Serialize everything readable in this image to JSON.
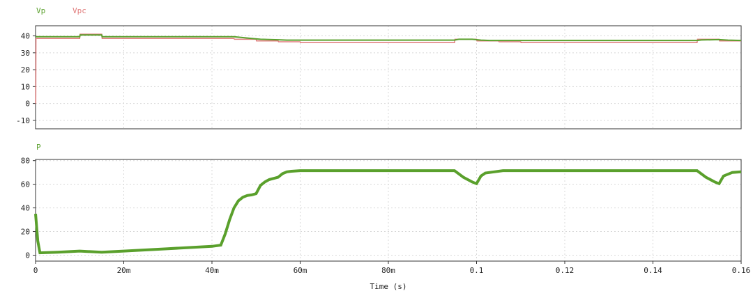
{
  "colors": {
    "vp": "#5aa02c",
    "vpc": "#e07b7b",
    "p": "#5aa02c",
    "grid": "#d8d8d8",
    "axis": "#333333"
  },
  "chart_data": [
    {
      "type": "line",
      "legend": [
        "Vp",
        "Vpc"
      ],
      "ylim": [
        -15,
        46
      ],
      "yticks": [
        40,
        30,
        20,
        10,
        0,
        -10
      ],
      "ytick_labels": [
        "40",
        "30",
        "20",
        "10",
        "0",
        "-10"
      ],
      "xlim": [
        0,
        0.16
      ],
      "series": [
        {
          "name": "Vp",
          "x": [
            0,
            0.0003,
            0.01,
            0.0101,
            0.015,
            0.0151,
            0.045,
            0.047,
            0.049,
            0.051,
            0.055,
            0.057,
            0.095,
            0.096,
            0.099,
            0.101,
            0.103,
            0.105,
            0.15,
            0.151,
            0.155,
            0.157,
            0.16
          ],
          "y": [
            39.5,
            39.5,
            39.5,
            40.5,
            40.5,
            39.5,
            39.5,
            39.0,
            38.5,
            38.0,
            37.7,
            37.5,
            37.5,
            38.0,
            38.0,
            37.5,
            37.3,
            37.3,
            37.3,
            37.6,
            37.8,
            37.5,
            37.3
          ]
        },
        {
          "name": "Vpc",
          "x": [
            0,
            5e-05,
            0.0001,
            0.01,
            0.0101,
            0.015,
            0.0151,
            0.045,
            0.0451,
            0.05,
            0.0501,
            0.055,
            0.0551,
            0.06,
            0.0601,
            0.095,
            0.0951,
            0.1,
            0.1001,
            0.105,
            0.1051,
            0.11,
            0.1101,
            0.15,
            0.1501,
            0.155,
            0.1551,
            0.16
          ],
          "y": [
            0,
            0,
            38.5,
            38.5,
            41.0,
            41.0,
            38.5,
            38.5,
            38.0,
            38.0,
            37.0,
            37.0,
            36.5,
            36.5,
            36.0,
            36.0,
            38.0,
            38.0,
            37.0,
            37.0,
            36.5,
            36.5,
            36.0,
            36.0,
            38.0,
            38.0,
            37.0,
            37.0
          ]
        }
      ]
    },
    {
      "type": "line",
      "legend": [
        "P"
      ],
      "ylim": [
        -5,
        81
      ],
      "yticks": [
        80,
        60,
        40,
        20,
        0
      ],
      "ytick_labels": [
        "80",
        "60",
        "40",
        "20",
        "0"
      ],
      "xlim": [
        0,
        0.16
      ],
      "xticks": [
        0,
        0.02,
        0.04,
        0.06,
        0.08,
        0.1,
        0.12,
        0.14,
        0.16
      ],
      "xtick_labels": [
        "0",
        "20m",
        "40m",
        "60m",
        "80m",
        "0.1",
        "0.12",
        "0.14",
        "0.16"
      ],
      "xlabel": "Time (s)",
      "series": [
        {
          "name": "P",
          "x": [
            0,
            0.0005,
            0.001,
            0.005,
            0.01,
            0.015,
            0.02,
            0.03,
            0.04,
            0.042,
            0.043,
            0.044,
            0.045,
            0.046,
            0.047,
            0.048,
            0.049,
            0.05,
            0.051,
            0.052,
            0.053,
            0.055,
            0.056,
            0.057,
            0.058,
            0.06,
            0.065,
            0.095,
            0.097,
            0.099,
            0.1,
            0.101,
            0.102,
            0.104,
            0.106,
            0.107,
            0.11,
            0.15,
            0.152,
            0.154,
            0.155,
            0.156,
            0.158,
            0.16
          ],
          "y": [
            35,
            12,
            2,
            2.5,
            3.5,
            2.5,
            3.5,
            5.5,
            7.5,
            8.5,
            18,
            30,
            40,
            46,
            49,
            50.5,
            51,
            52,
            59,
            62,
            64,
            66,
            69,
            70.5,
            71,
            71.5,
            71.5,
            71.5,
            66,
            62,
            60.5,
            67,
            69.5,
            70.5,
            71.5,
            71.5,
            71.5,
            71.5,
            66,
            62,
            60.5,
            67,
            70,
            70.5
          ]
        }
      ]
    }
  ]
}
